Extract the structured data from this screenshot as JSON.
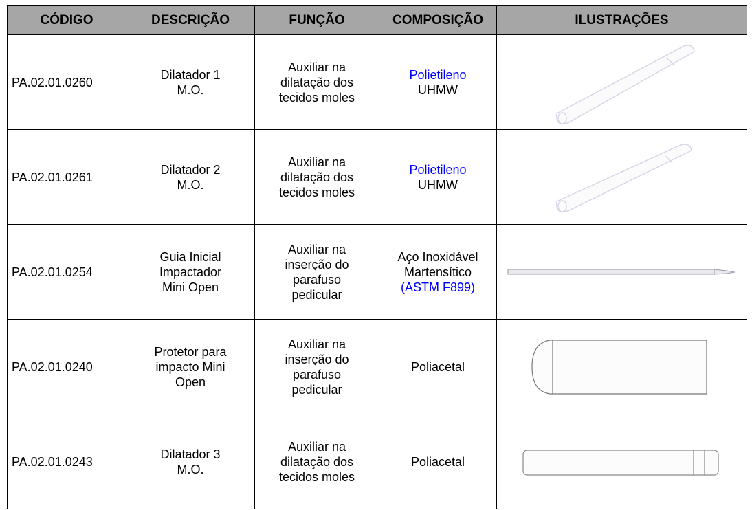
{
  "table": {
    "header": [
      "CÓDIGO",
      "DESCRIÇÃO",
      "FUNÇÃO",
      "COMPOSIÇÃO",
      "ILUSTRAÇÕES"
    ],
    "rows": [
      {
        "code": "PA.02.01.0260",
        "description": [
          "Dilatador 1",
          "M.O."
        ],
        "function": [
          "Auxiliar na",
          "dilatação dos",
          "tecidos moles"
        ],
        "composition": [
          {
            "text": "Polietileno",
            "color": "#0000ff"
          },
          {
            "text": "UHMW"
          }
        ]
      },
      {
        "code": "PA.02.01.0261",
        "description": [
          "Dilatador 2",
          "M.O."
        ],
        "function": [
          "Auxiliar na",
          "dilatação dos",
          "tecidos moles"
        ],
        "composition": [
          {
            "text": "Polietileno",
            "color": "#0000ff"
          },
          {
            "text": "UHMW"
          }
        ]
      },
      {
        "code": "PA.02.01.0254",
        "description": [
          "Guia Inicial",
          "Impactador",
          "Mini Open"
        ],
        "function": [
          "Auxiliar na",
          "inserção do",
          "parafuso",
          "pedicular"
        ],
        "composition": [
          {
            "text": "Aço Inoxidável"
          },
          {
            "text": "Martensítico"
          },
          {
            "text": "(ASTM F899)",
            "color": "#0000ff"
          }
        ]
      },
      {
        "code": "PA.02.01.0240",
        "description": [
          "Protetor para",
          "impacto Mini",
          "Open"
        ],
        "function": [
          "Auxiliar na",
          "inserção do",
          "parafuso",
          "pedicular"
        ],
        "composition": [
          {
            "text": "Poliacetal"
          }
        ]
      },
      {
        "code": "PA.02.01.0243",
        "description": [
          "Dilatador 3",
          "M.O."
        ],
        "function": [
          "Auxiliar na",
          "dilatação dos",
          "tecidos moles"
        ],
        "composition": [
          {
            "text": "Poliacetal"
          }
        ]
      }
    ]
  }
}
